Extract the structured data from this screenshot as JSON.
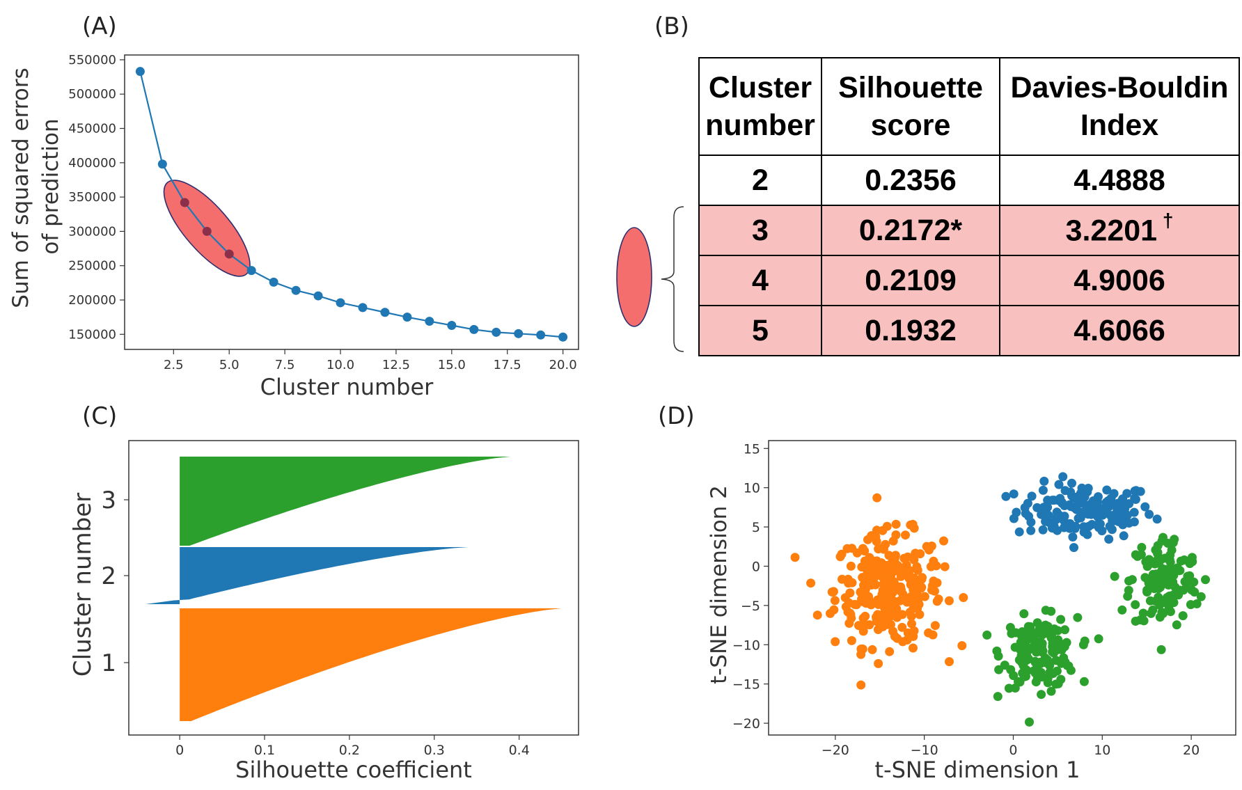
{
  "panels": {
    "a": "(A)",
    "b": "(B)",
    "c": "(C)",
    "d": "(D)"
  },
  "colors": {
    "blue": "#1f77b4",
    "orange": "#ff7f0e",
    "green": "#2ca02c",
    "highlight": "#f46e6e",
    "table_highlight": "#f9c0c0"
  },
  "chart_data": [
    {
      "id": "A",
      "type": "line",
      "xlabel": "Cluster number",
      "ylabel_line1": "Sum of squared errors",
      "ylabel_line2": "of prediction",
      "xlim": [
        0.3,
        20.7
      ],
      "ylim": [
        128000,
        557000
      ],
      "xticks": [
        2.5,
        5.0,
        7.5,
        10.0,
        12.5,
        15.0,
        17.5,
        20.0
      ],
      "xtick_labels": [
        "2.5",
        "5.0",
        "7.5",
        "10.0",
        "12.5",
        "15.0",
        "17.5",
        "20.0"
      ],
      "yticks": [
        150000,
        200000,
        250000,
        300000,
        350000,
        400000,
        450000,
        500000,
        550000
      ],
      "ytick_labels": [
        "150000",
        "200000",
        "250000",
        "300000",
        "350000",
        "400000",
        "450000",
        "500000",
        "550000"
      ],
      "x": [
        1,
        2,
        3,
        4,
        5,
        6,
        7,
        8,
        9,
        10,
        11,
        12,
        13,
        14,
        15,
        16,
        17,
        18,
        19,
        20
      ],
      "y": [
        533000,
        398000,
        342000,
        300000,
        267000,
        243000,
        226000,
        214000,
        206000,
        196000,
        189000,
        182000,
        175000,
        169000,
        163000,
        157000,
        153000,
        151000,
        149000,
        146000
      ],
      "highlight_points": [
        3,
        4,
        5
      ]
    },
    {
      "id": "B",
      "type": "table",
      "columns": [
        "Cluster\nnumber",
        "Silhouette\nscore",
        "Davies-Bouldin\nIndex"
      ],
      "rows": [
        {
          "cluster": "2",
          "silhouette": "0.2356",
          "db": "4.4888",
          "db_mark": "",
          "highlight": false
        },
        {
          "cluster": "3",
          "silhouette": "0.2172*",
          "db": "3.2201",
          "db_mark": "†",
          "highlight": true
        },
        {
          "cluster": "4",
          "silhouette": "0.2109",
          "db": "4.9006",
          "db_mark": "",
          "highlight": true
        },
        {
          "cluster": "5",
          "silhouette": "0.1932",
          "db": "4.6066",
          "db_mark": "",
          "highlight": true
        }
      ]
    },
    {
      "id": "C",
      "type": "area",
      "xlabel": "Silhouette coefficient",
      "ylabel": "Cluster number",
      "xlim": [
        -0.06,
        0.47
      ],
      "xticks": [
        0,
        0.1,
        0.2,
        0.3,
        0.4
      ],
      "xtick_labels": [
        "0",
        "0.1",
        "0.2",
        "0.3",
        "0.4"
      ],
      "series": [
        {
          "name": "1",
          "color": "orange",
          "max": 0.45,
          "min": 0.0
        },
        {
          "name": "2",
          "color": "blue",
          "max": 0.34,
          "min": -0.04
        },
        {
          "name": "3",
          "color": "green",
          "max": 0.39,
          "min": 0.0
        }
      ],
      "ytick_labels": [
        "1",
        "2",
        "3"
      ]
    },
    {
      "id": "D",
      "type": "scatter",
      "xlabel": "t-SNE dimension 1",
      "ylabel": "t-SNE dimension 2",
      "xlim": [
        -27.5,
        25
      ],
      "ylim": [
        -21.5,
        16
      ],
      "xticks": [
        -20,
        -10,
        0,
        10,
        20
      ],
      "xtick_labels": [
        "−20",
        "−10",
        "0",
        "10",
        "20"
      ],
      "yticks": [
        -20,
        -15,
        -10,
        -5,
        0,
        5,
        10,
        15
      ],
      "ytick_labels": [
        "−20",
        "−15",
        "−10",
        "−5",
        "0",
        "5",
        "10",
        "15"
      ],
      "clusters": [
        {
          "name": "cluster-blue",
          "color": "blue",
          "center": [
            8,
            7
          ],
          "spread": [
            7,
            3.2
          ],
          "count": 150
        },
        {
          "name": "cluster-orange",
          "color": "orange",
          "center": [
            -14,
            -3
          ],
          "spread": [
            5.5,
            6.5
          ],
          "count": 280
        },
        {
          "name": "cluster-green-left",
          "color": "green",
          "center": [
            3,
            -11
          ],
          "spread": [
            3.8,
            4
          ],
          "count": 150
        },
        {
          "name": "cluster-green-right",
          "color": "green",
          "center": [
            17,
            -2
          ],
          "spread": [
            3.5,
            5.5
          ],
          "count": 130
        }
      ]
    }
  ]
}
